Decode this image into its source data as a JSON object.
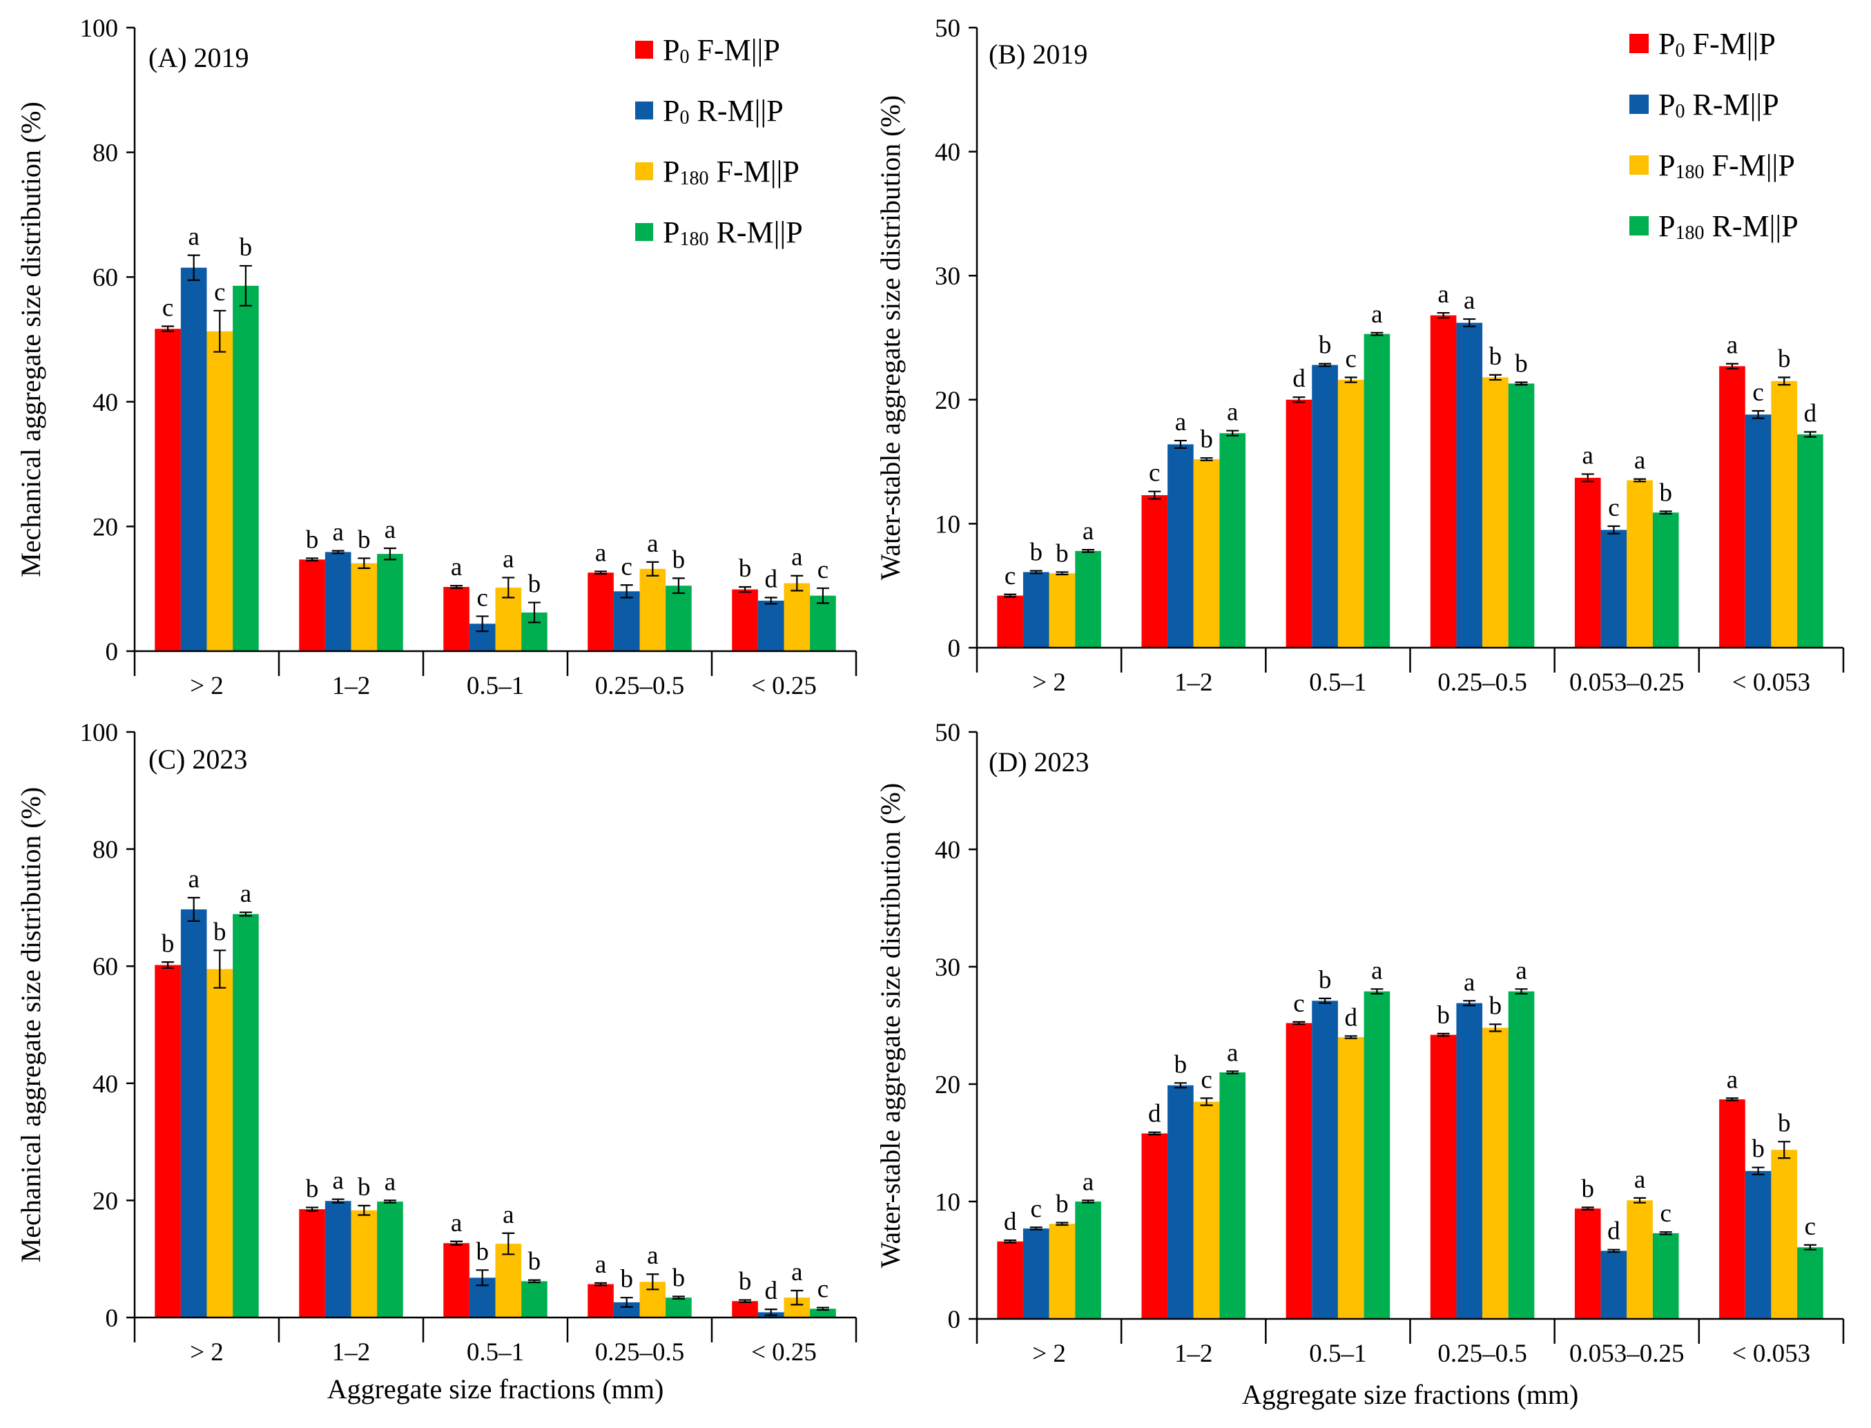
{
  "xlabel": "Aggregate size fractions (mm)",
  "series_names": [
    "P0 F-M||P",
    "P0 R-M||P",
    "P180 F-M||P",
    "P180 R-M||P"
  ],
  "legend": [
    {
      "base": "P",
      "sub": "0",
      "rest": " F-M||P",
      "color": "#ff0000"
    },
    {
      "base": "P",
      "sub": "0",
      "rest": " R-M||P",
      "color": "#0b5ba6"
    },
    {
      "base": "P",
      "sub": "180",
      "rest": " F-M||P",
      "color": "#ffc000"
    },
    {
      "base": "P",
      "sub": "180",
      "rest": " R-M||P",
      "color": "#00b050"
    }
  ],
  "chart_data": [
    {
      "type": "bar",
      "id": "A",
      "title": "(A) 2019",
      "ylabel": "Mechanical aggregate size distribution (%)",
      "xlabel": "",
      "ylim": [
        0,
        100
      ],
      "yticks": [
        0,
        20,
        40,
        60,
        80,
        100
      ],
      "categories": [
        "> 2",
        "1–2",
        "0.5–1",
        "0.25–0.5",
        "< 0.25"
      ],
      "series": [
        {
          "name": "P0 F-M||P",
          "color": "#ff0000",
          "values": [
            51.7,
            14.7,
            10.3,
            12.6,
            9.9
          ],
          "errors": [
            0.4,
            0.2,
            0.2,
            0.2,
            0.4
          ],
          "letters": [
            "c",
            "b",
            "a",
            "a",
            "b"
          ]
        },
        {
          "name": "P0 R-M||P",
          "color": "#0b5ba6",
          "values": [
            61.5,
            15.9,
            4.4,
            9.6,
            8.1
          ],
          "errors": [
            2.0,
            0.2,
            1.2,
            1.0,
            0.5
          ],
          "letters": [
            "a",
            "a",
            "c",
            "c",
            "d"
          ]
        },
        {
          "name": "P180 F-M||P",
          "color": "#ffc000",
          "values": [
            51.3,
            14.1,
            10.2,
            13.2,
            10.9
          ],
          "errors": [
            3.3,
            0.8,
            1.6,
            1.1,
            1.2
          ],
          "letters": [
            "c",
            "b",
            "a",
            "a",
            "a"
          ]
        },
        {
          "name": "P180 R-M||P",
          "color": "#00b050",
          "values": [
            58.6,
            15.6,
            6.2,
            10.5,
            8.9
          ],
          "errors": [
            3.2,
            0.9,
            1.6,
            1.2,
            1.2
          ],
          "letters": [
            "b",
            "a",
            "b",
            "b",
            "c"
          ]
        }
      ]
    },
    {
      "type": "bar",
      "id": "B",
      "title": "(B) 2019",
      "ylabel": "Water-stable aggregate size distribution (%)",
      "xlabel": "",
      "ylim": [
        0,
        50
      ],
      "yticks": [
        0,
        10,
        20,
        30,
        40,
        50
      ],
      "categories": [
        "> 2",
        "1–2",
        "0.5–1",
        "0.25–0.5",
        "0.053–0.25",
        "< 0.053"
      ],
      "series": [
        {
          "name": "P0 F-M||P",
          "color": "#ff0000",
          "values": [
            4.2,
            12.3,
            20.0,
            26.8,
            13.7,
            22.7
          ],
          "errors": [
            0.1,
            0.3,
            0.2,
            0.2,
            0.3,
            0.2
          ],
          "letters": [
            "c",
            "c",
            "d",
            "a",
            "a",
            "a"
          ]
        },
        {
          "name": "P0 R-M||P",
          "color": "#0b5ba6",
          "values": [
            6.1,
            16.4,
            22.8,
            26.2,
            9.5,
            18.8
          ],
          "errors": [
            0.1,
            0.3,
            0.1,
            0.3,
            0.3,
            0.3
          ],
          "letters": [
            "b",
            "a",
            "b",
            "a",
            "c",
            "c"
          ]
        },
        {
          "name": "P180 F-M||P",
          "color": "#ffc000",
          "values": [
            6.0,
            15.2,
            21.6,
            21.8,
            13.5,
            21.5
          ],
          "errors": [
            0.1,
            0.1,
            0.2,
            0.2,
            0.1,
            0.3
          ],
          "letters": [
            "b",
            "b",
            "c",
            "b",
            "a",
            "b"
          ]
        },
        {
          "name": "P180 R-M||P",
          "color": "#00b050",
          "values": [
            7.8,
            17.3,
            25.3,
            21.3,
            10.9,
            17.2
          ],
          "errors": [
            0.1,
            0.2,
            0.1,
            0.1,
            0.1,
            0.2
          ],
          "letters": [
            "a",
            "a",
            "a",
            "b",
            "b",
            "d"
          ]
        }
      ]
    },
    {
      "type": "bar",
      "id": "C",
      "title": "(C) 2023",
      "ylabel": "Mechanical aggregate size distribution (%)",
      "xlabel": "Aggregate size fractions (mm)",
      "ylim": [
        0,
        100
      ],
      "yticks": [
        0,
        20,
        40,
        60,
        80,
        100
      ],
      "categories": [
        "> 2",
        "1–2",
        "0.5–1",
        "0.25–0.5",
        "< 0.25"
      ],
      "series": [
        {
          "name": "P0 F-M||P",
          "color": "#ff0000",
          "values": [
            60.2,
            18.5,
            12.7,
            5.7,
            2.8
          ],
          "errors": [
            0.5,
            0.3,
            0.3,
            0.2,
            0.2
          ],
          "letters": [
            "b",
            "b",
            "a",
            "a",
            "b"
          ]
        },
        {
          "name": "P0 R-M||P",
          "color": "#0b5ba6",
          "values": [
            69.7,
            19.9,
            6.8,
            2.6,
            0.9
          ],
          "errors": [
            2.0,
            0.3,
            1.3,
            0.8,
            0.5
          ],
          "letters": [
            "a",
            "a",
            "b",
            "b",
            "d"
          ]
        },
        {
          "name": "P180 F-M||P",
          "color": "#ffc000",
          "values": [
            59.5,
            18.3,
            12.6,
            6.1,
            3.4
          ],
          "errors": [
            3.2,
            0.8,
            1.8,
            1.3,
            1.2
          ],
          "letters": [
            "b",
            "b",
            "a",
            "a",
            "a"
          ]
        },
        {
          "name": "P180 R-M||P",
          "color": "#00b050",
          "values": [
            68.9,
            19.8,
            6.2,
            3.4,
            1.5
          ],
          "errors": [
            0.3,
            0.2,
            0.2,
            0.2,
            0.2
          ],
          "letters": [
            "a",
            "a",
            "b",
            "b",
            "c"
          ]
        }
      ]
    },
    {
      "type": "bar",
      "id": "D",
      "title": "(D) 2023",
      "ylabel": "Water-stable aggregate size distribution (%)",
      "xlabel": "Aggregate size fractions (mm)",
      "ylim": [
        0,
        50
      ],
      "yticks": [
        0,
        10,
        20,
        30,
        40,
        50
      ],
      "categories": [
        "> 2",
        "1–2",
        "0.5–1",
        "0.25–0.5",
        "0.053–0.25",
        "< 0.053"
      ],
      "series": [
        {
          "name": "P0 F-M||P",
          "color": "#ff0000",
          "values": [
            6.6,
            15.8,
            25.2,
            24.2,
            9.4,
            18.7
          ],
          "errors": [
            0.1,
            0.1,
            0.1,
            0.1,
            0.1,
            0.1
          ],
          "letters": [
            "d",
            "d",
            "c",
            "b",
            "b",
            "a"
          ]
        },
        {
          "name": "P0 R-M||P",
          "color": "#0b5ba6",
          "values": [
            7.7,
            19.9,
            27.1,
            26.9,
            5.8,
            12.6
          ],
          "errors": [
            0.1,
            0.2,
            0.2,
            0.2,
            0.1,
            0.3
          ],
          "letters": [
            "c",
            "b",
            "b",
            "a",
            "d",
            "b"
          ]
        },
        {
          "name": "P180 F-M||P",
          "color": "#ffc000",
          "values": [
            8.1,
            18.5,
            24.0,
            24.8,
            10.1,
            14.4
          ],
          "errors": [
            0.1,
            0.3,
            0.1,
            0.3,
            0.2,
            0.7
          ],
          "letters": [
            "b",
            "c",
            "d",
            "b",
            "a",
            "b"
          ]
        },
        {
          "name": "P180 R-M||P",
          "color": "#00b050",
          "values": [
            10.0,
            21.0,
            27.9,
            27.9,
            7.3,
            6.1
          ],
          "errors": [
            0.1,
            0.1,
            0.2,
            0.2,
            0.1,
            0.2
          ],
          "letters": [
            "a",
            "a",
            "a",
            "a",
            "c",
            "c"
          ]
        }
      ]
    }
  ]
}
